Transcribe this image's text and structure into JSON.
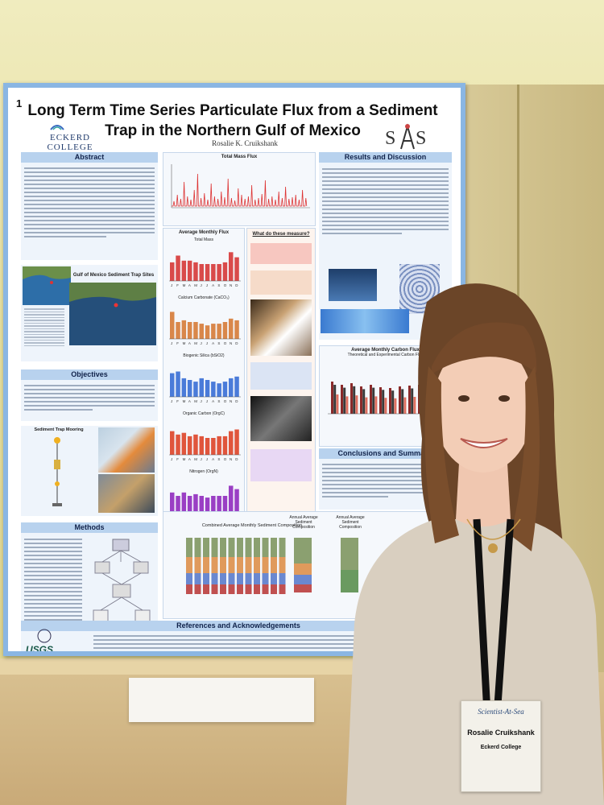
{
  "poster": {
    "number": "1",
    "title": "Long Term Time Series Particulate Flux from a Sediment Trap in the Northern Gulf of Mexico",
    "author": "Rosalie K. Cruikshank",
    "institution": "ECKERD COLLEGE",
    "sections": {
      "abstract": "Abstract",
      "map_title": "Gulf of Mexico Sediment Trap Sites",
      "objectives": "Objectives",
      "mooring": "Sediment Trap Mooring",
      "methods": "Methods",
      "total_mass_flux": "Total Mass Flux",
      "avg_monthly_flux": "Average Monthly Flux",
      "total_mass": "Total Mass",
      "calcium_carbonate": "Calcium Carbonate (CaCO₃)",
      "biogenic_silica": "Biogenic Silica (bSiO2)",
      "organic_carbon": "Organic Carbon (OrgC)",
      "nitrogen": "Nitrogen (OrgN)",
      "what_measure": "What do these measure?",
      "results": "Results and Discussion",
      "avg_carbon_flux": "Average Monthly Carbon Flux",
      "carbon_subtitle": "Theoretical and Experimental Carbon Flux",
      "conclusions": "Conclusions and Summary",
      "combined": "Combined Average Monthly Sediment Composition",
      "annual_1": "Annual Average Sediment Composition",
      "annual_2": "Annual Average Sediment Composition",
      "references": "References and Acknowledgements"
    },
    "usgs_label": "USGS",
    "months": [
      "J",
      "F",
      "M",
      "A",
      "M",
      "J",
      "J",
      "A",
      "S",
      "O",
      "N",
      "D"
    ]
  },
  "badge": {
    "header": "Scientist-At-Sea",
    "name": "Rosalie Cruikshank",
    "org": "Eckerd College"
  },
  "chart_data": [
    {
      "type": "bar",
      "title": "Total Mass",
      "categories": [
        "J",
        "F",
        "M",
        "A",
        "M",
        "J",
        "J",
        "A",
        "S",
        "O",
        "N",
        "D"
      ],
      "values": [
        0.55,
        0.75,
        0.6,
        0.6,
        0.55,
        0.5,
        0.5,
        0.5,
        0.5,
        0.55,
        0.85,
        0.7
      ]
    },
    {
      "type": "bar",
      "title": "Calcium Carbonate (CaCO₃)",
      "categories": [
        "J",
        "F",
        "M",
        "A",
        "M",
        "J",
        "J",
        "A",
        "S",
        "O",
        "N",
        "D"
      ],
      "values": [
        0.8,
        0.5,
        0.55,
        0.5,
        0.5,
        0.45,
        0.4,
        0.45,
        0.45,
        0.5,
        0.6,
        0.55
      ]
    },
    {
      "type": "bar",
      "title": "Biogenic Silica (bSiO2)",
      "categories": [
        "J",
        "F",
        "M",
        "A",
        "M",
        "J",
        "J",
        "A",
        "S",
        "O",
        "N",
        "D"
      ],
      "values": [
        0.7,
        0.75,
        0.55,
        0.5,
        0.45,
        0.55,
        0.5,
        0.45,
        0.4,
        0.45,
        0.55,
        0.6
      ]
    },
    {
      "type": "bar",
      "title": "Organic Carbon (OrgC)",
      "categories": [
        "J",
        "F",
        "M",
        "A",
        "M",
        "J",
        "J",
        "A",
        "S",
        "O",
        "N",
        "D"
      ],
      "values": [
        0.7,
        0.6,
        0.65,
        0.55,
        0.6,
        0.55,
        0.5,
        0.5,
        0.55,
        0.55,
        0.7,
        0.75
      ]
    },
    {
      "type": "bar",
      "title": "Nitrogen (OrgN)",
      "categories": [
        "J",
        "F",
        "M",
        "A",
        "M",
        "J",
        "J",
        "A",
        "S",
        "O",
        "N",
        "D"
      ],
      "values": [
        0.6,
        0.5,
        0.6,
        0.5,
        0.55,
        0.5,
        0.45,
        0.5,
        0.5,
        0.5,
        0.8,
        0.7
      ]
    }
  ],
  "colors": {
    "section_head": "#b8d2ee",
    "poster_border": "#8ab6e3",
    "total_mass": "#d94a4a",
    "caco3": "#d9874a",
    "bsio2": "#4a7bd9",
    "orgc": "#e0553c",
    "orgn": "#9a3fc4"
  }
}
